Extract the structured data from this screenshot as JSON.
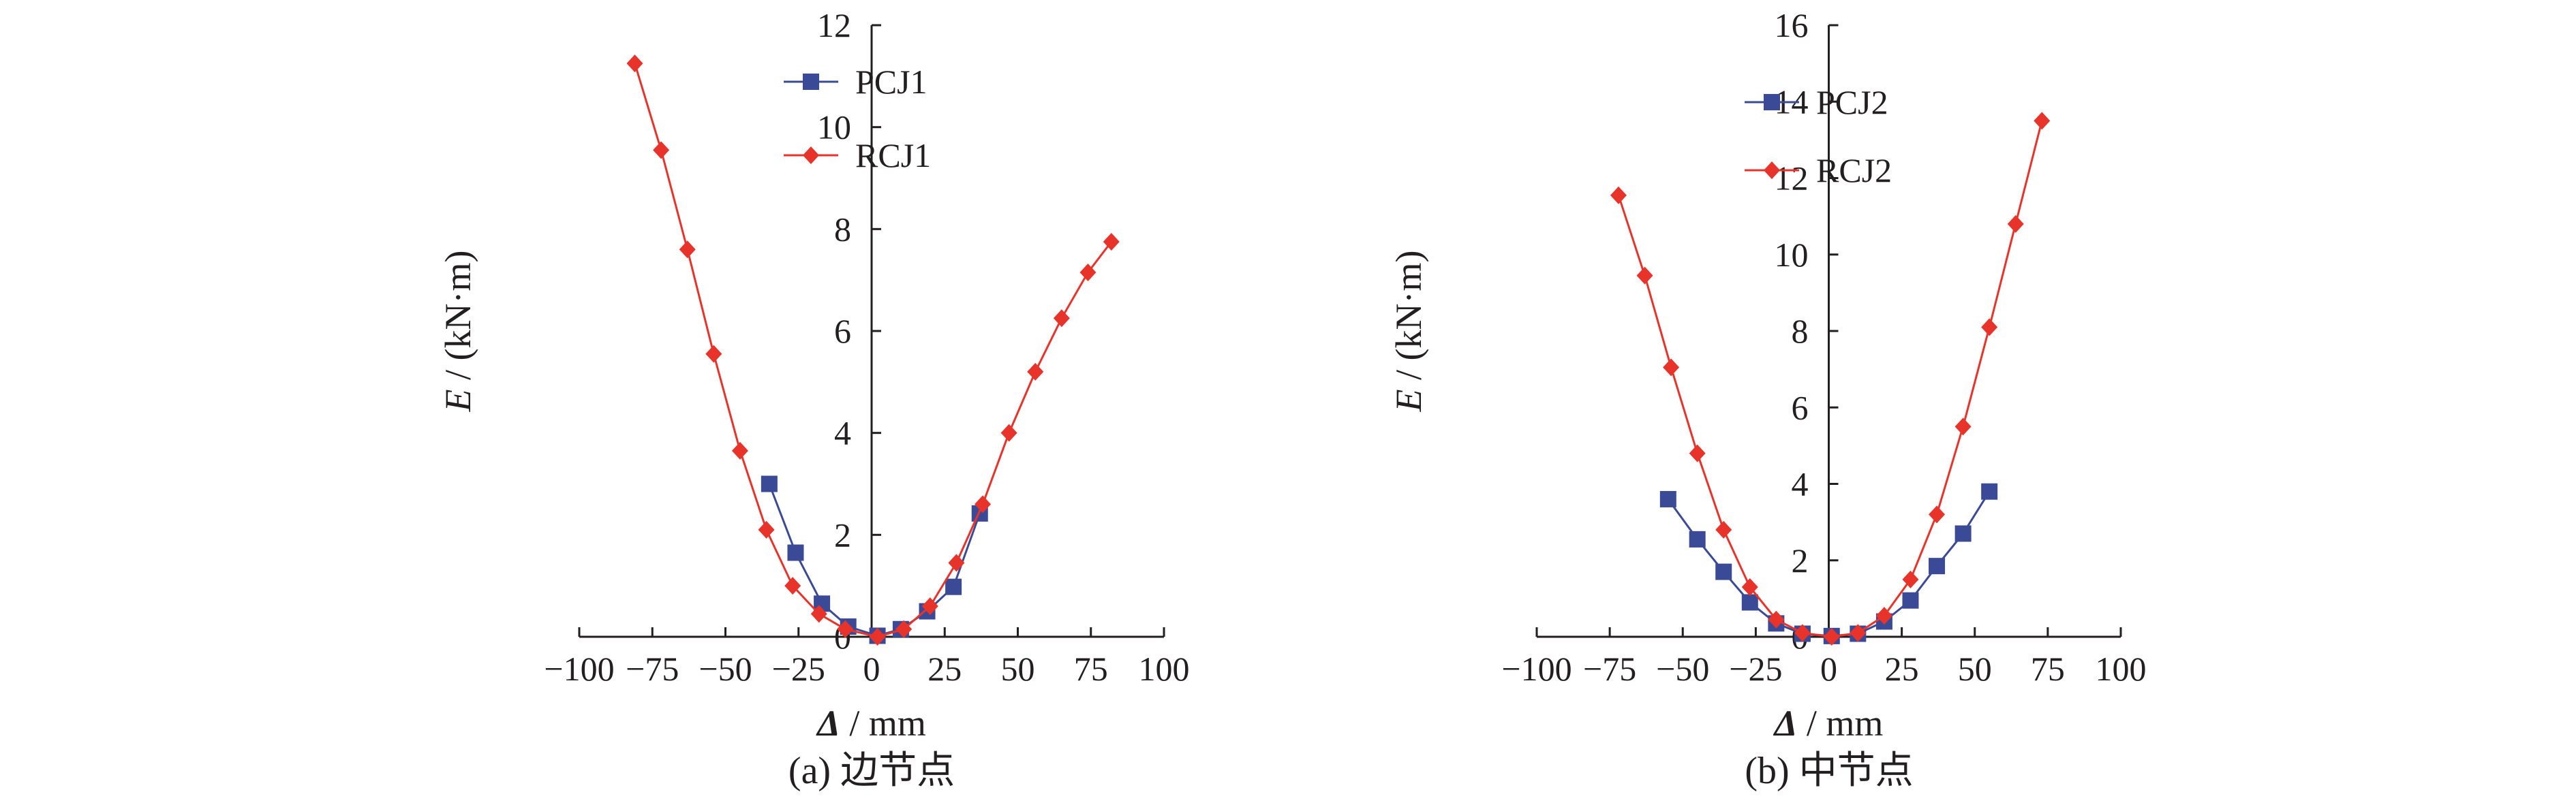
{
  "chart_data": [
    {
      "type": "line",
      "caption": "(a) 边节点",
      "xlabel_symbol": "Δ",
      "xlabel_unit": " / mm",
      "ylabel_symbol": "E",
      "ylabel_unit": " / (kN·m)",
      "xlim": [
        -100,
        100
      ],
      "ylim": [
        0,
        12
      ],
      "xticks": [
        -100,
        -75,
        -50,
        -25,
        0,
        25,
        50,
        75,
        100
      ],
      "xtick_labels": [
        "−100",
        "−75",
        "−50",
        "−25",
        "0",
        "25",
        "50",
        "75",
        "100"
      ],
      "yticks": [
        0,
        2,
        4,
        6,
        8,
        10,
        12
      ],
      "ytick_labels": [
        "0",
        "2",
        "4",
        "6",
        "8",
        "10",
        "12"
      ],
      "legend_position": "top-center",
      "series": [
        {
          "name": "PCJ1",
          "color": "#3b4a96",
          "marker": "square",
          "x": [
            -35,
            -26,
            -17,
            -8,
            2,
            10,
            19,
            28,
            37
          ],
          "y": [
            3.0,
            1.65,
            0.65,
            0.2,
            0.02,
            0.15,
            0.5,
            0.98,
            2.42
          ]
        },
        {
          "name": "RCJ1",
          "color": "#e8332a",
          "marker": "diamond",
          "x": [
            -81,
            -72,
            -63,
            -54,
            -45,
            -36,
            -27,
            -18,
            -9,
            2,
            11,
            20,
            29,
            38,
            47,
            56,
            65,
            74,
            82
          ],
          "y": [
            11.25,
            9.55,
            7.6,
            5.55,
            3.65,
            2.1,
            1.0,
            0.45,
            0.15,
            0.0,
            0.15,
            0.6,
            1.45,
            2.6,
            4.0,
            5.2,
            6.25,
            7.15,
            7.75
          ]
        }
      ]
    },
    {
      "type": "line",
      "caption": "(b) 中节点",
      "xlabel_symbol": "Δ",
      "xlabel_unit": " / mm",
      "ylabel_symbol": "E",
      "ylabel_unit": " / (kN·m)",
      "xlim": [
        -100,
        100
      ],
      "ylim": [
        0,
        16
      ],
      "xticks": [
        -100,
        -75,
        -50,
        -25,
        0,
        25,
        50,
        75,
        100
      ],
      "xtick_labels": [
        "−100",
        "−75",
        "−50",
        "−25",
        "0",
        "25",
        "50",
        "75",
        "100"
      ],
      "yticks": [
        0,
        2,
        4,
        6,
        8,
        10,
        12,
        14,
        16
      ],
      "ytick_labels": [
        "0",
        "2",
        "4",
        "6",
        "8",
        "10",
        "12",
        "14",
        "16"
      ],
      "legend_position": "top-center",
      "series": [
        {
          "name": "PCJ2",
          "color": "#3b4a96",
          "marker": "square",
          "x": [
            -55,
            -45,
            -36,
            -27,
            -18,
            -9,
            1,
            10,
            19,
            28,
            37,
            46,
            55
          ],
          "y": [
            3.6,
            2.55,
            1.7,
            0.9,
            0.35,
            0.08,
            0.02,
            0.08,
            0.4,
            0.95,
            1.85,
            2.7,
            3.8
          ]
        },
        {
          "name": "RCJ2",
          "color": "#e8332a",
          "marker": "diamond",
          "x": [
            -72,
            -63,
            -54,
            -45,
            -36,
            -27,
            -18,
            -9,
            1,
            10,
            19,
            28,
            37,
            46,
            55,
            64,
            73
          ],
          "y": [
            11.55,
            9.45,
            7.05,
            4.8,
            2.8,
            1.3,
            0.45,
            0.1,
            0.0,
            0.1,
            0.55,
            1.5,
            3.2,
            5.5,
            8.1,
            10.8,
            13.5
          ]
        }
      ]
    }
  ]
}
